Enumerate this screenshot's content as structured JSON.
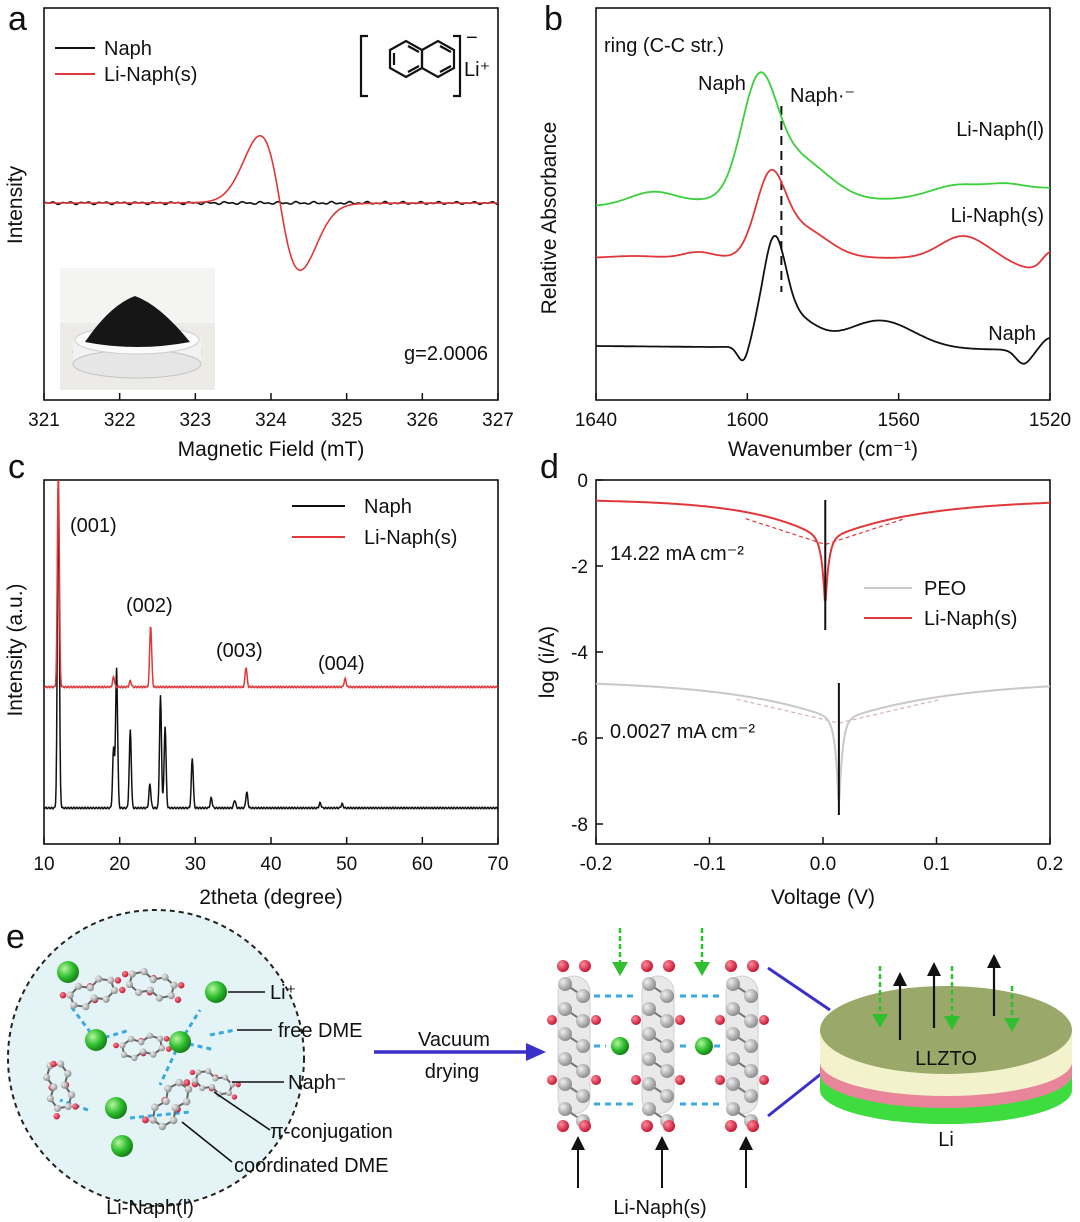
{
  "panel_labels": {
    "a": "a",
    "b": "b",
    "c": "c",
    "d": "d",
    "e": "e"
  },
  "chart_data": [
    {
      "type": "line",
      "panel": "a",
      "xlabel": "Magnetic Field (mT)",
      "ylabel": "Intensity",
      "xlim": [
        321,
        327
      ],
      "xticks": [
        "321",
        "322",
        "323",
        "324",
        "325",
        "326",
        "327"
      ],
      "series": [
        {
          "name": "Naph",
          "color": "#111111"
        },
        {
          "name": "Li-Naph(s)",
          "color": "#e0383a"
        }
      ],
      "annotations": {
        "g_value": "g=2.0006",
        "counter_ion": "Li⁺",
        "charge": "−"
      }
    },
    {
      "type": "line",
      "panel": "b",
      "xlabel": "Wavenumber (cm⁻¹)",
      "ylabel": "Relative Absorbance",
      "xlim": [
        1640,
        1520
      ],
      "xticks": [
        "1640",
        "1600",
        "1560",
        "1520"
      ],
      "series": [
        {
          "name": "Li-Naph(l)",
          "color": "#3ccf3c"
        },
        {
          "name": "Li-Naph(s)",
          "color": "#e0383a"
        },
        {
          "name": "Naph",
          "color": "#111111"
        }
      ],
      "annotations": {
        "region": "ring (C-C str.)",
        "peak_naph": "Naph",
        "peak_naph_anion": "Naph·⁻",
        "marker_wavenumber": 1591
      }
    },
    {
      "type": "line",
      "panel": "c",
      "xlabel": "2theta (degree)",
      "ylabel": "Intensity (a.u.)",
      "xlim": [
        10,
        70
      ],
      "xticks": [
        "10",
        "20",
        "30",
        "40",
        "50",
        "60",
        "70"
      ],
      "series": [
        {
          "name": "Naph",
          "color": "#111111",
          "peaks_2theta": [
            11.9,
            19.2,
            19.6,
            21.4,
            24.0,
            25.4,
            26.0,
            29.6,
            32.1,
            35.2,
            36.8
          ]
        },
        {
          "name": "Li-Naph(s)",
          "color": "#e0383a",
          "peaks_2theta": [
            11.9,
            24.1,
            36.7,
            49.8
          ]
        }
      ],
      "peak_labels": [
        "(001)",
        "(002)",
        "(003)",
        "(004)"
      ]
    },
    {
      "type": "line",
      "panel": "d",
      "xlabel": "Voltage (V)",
      "ylabel": "log (i/A)",
      "xlim": [
        -0.2,
        0.2
      ],
      "ylim": [
        -8,
        0
      ],
      "xticks": [
        "-0.2",
        "-0.1",
        "0.0",
        "0.1",
        "0.2"
      ],
      "yticks": [
        "0",
        "-2",
        "-4",
        "-6",
        "-8"
      ],
      "series": [
        {
          "name": "PEO",
          "color": "#c8c8c8",
          "corrosion_potential": 0.014,
          "exchange_current": "0.0027 mA cm⁻²"
        },
        {
          "name": "Li-Naph(s)",
          "color": "#e0383a",
          "corrosion_potential": 0.002,
          "exchange_current": "14.22 mA cm⁻²"
        }
      ]
    }
  ],
  "schematic": {
    "liquid_labels": {
      "li_ion": "Li⁺",
      "free_dme": "free DME",
      "anion": "Naph⁻",
      "pi": "π-conjugation",
      "coord_dme": "coordinated DME"
    },
    "liquid_caption": "Li-Naph(l)",
    "arrow_text_1": "Vacuum",
    "arrow_text_2": "drying",
    "solid_caption": "Li-Naph(s)",
    "disk_top": "LLZTO",
    "disk_bottom": "Li",
    "colors": {
      "li": "#2fbf2f",
      "carbon": "#a8a8a8",
      "oxygen": "#e0203a",
      "link": "#3aa9e0",
      "arrow": "#3a2fc8"
    }
  }
}
